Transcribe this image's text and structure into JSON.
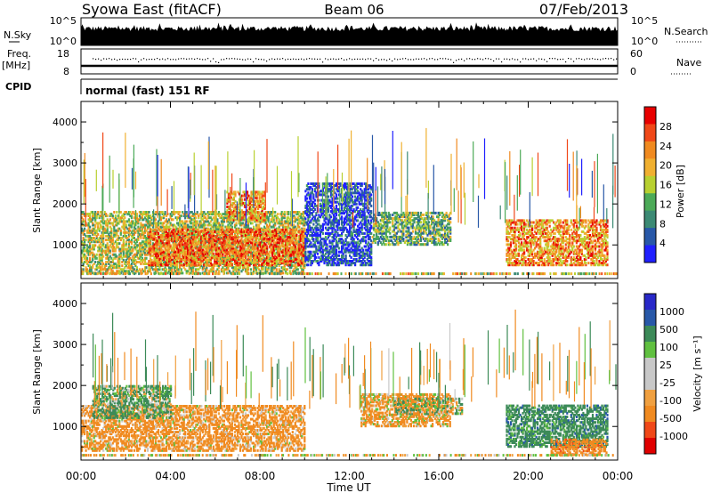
{
  "header": {
    "station": "Syowa East (fitACF)",
    "beam": "Beam 06",
    "date": "07/Feb/2013"
  },
  "top_panels": {
    "nsky_label": "N.Sky",
    "nsky_ticks": [
      "10^5",
      "10^0"
    ],
    "nsearch_label": "N.Search",
    "nsearch_ticks": [
      "10^5",
      "10^0"
    ],
    "freq_label": "Freq.",
    "freq_unit": "[MHz]",
    "freq_ticks": [
      "18",
      "8"
    ],
    "nave_label": "Nave",
    "nave_ticks": [
      "60",
      "0"
    ],
    "cpid_label": "CPID",
    "cpid_value": "normal (fast) 151 RF"
  },
  "x_axis": {
    "label": "Time UT",
    "ticks": [
      "00:00",
      "04:00",
      "08:00",
      "12:00",
      "16:00",
      "20:00",
      "00:00"
    ]
  },
  "colors": {
    "power_scale": [
      "#2020ff",
      "#2858a8",
      "#3c8a74",
      "#4caa58",
      "#b8d030",
      "#f0b030",
      "#f08a20",
      "#f04818",
      "#e80000"
    ],
    "velocity_scale": [
      "#e00000",
      "#f04818",
      "#f08a20",
      "#f0a040",
      "#c8c8c8",
      "#c8c8c8",
      "#60c040",
      "#3c8a58",
      "#2858a8",
      "#2828c8"
    ]
  },
  "chart_data": [
    {
      "type": "heatmap",
      "name": "power-panel",
      "ylabel": "Slant Range [km]",
      "xlabel": "Time UT",
      "x_range_hours": [
        0,
        24
      ],
      "ylim": [
        180,
        4500
      ],
      "yticks": [
        "1000",
        "2000",
        "3000",
        "4000"
      ],
      "colorbar_label": "Power [dB]",
      "colorbar_ticks": [
        "4",
        "8",
        "12",
        "16",
        "20",
        "24",
        "28"
      ],
      "regions": [
        {
          "t0": 0.0,
          "t1": 10.0,
          "r0": 300,
          "r1": 1800,
          "value": 18
        },
        {
          "t0": 3.0,
          "t1": 10.0,
          "r0": 500,
          "r1": 1400,
          "value": 26
        },
        {
          "t0": 6.5,
          "t1": 8.2,
          "r0": 1600,
          "r1": 2300,
          "value": 24
        },
        {
          "t0": 13.0,
          "t1": 16.5,
          "r0": 1000,
          "r1": 1800,
          "value": 14
        },
        {
          "t0": 19.0,
          "t1": 23.5,
          "r0": 500,
          "r1": 1600,
          "value": 24
        },
        {
          "t0": 10.0,
          "t1": 13.0,
          "r0": 500,
          "r1": 2500,
          "value": 6
        }
      ]
    },
    {
      "type": "heatmap",
      "name": "velocity-panel",
      "ylabel": "Slant Range [km]",
      "xlabel": "Time UT",
      "x_range_hours": [
        0,
        24
      ],
      "ylim": [
        180,
        4500
      ],
      "yticks": [
        "1000",
        "2000",
        "3000",
        "4000"
      ],
      "colorbar_label": "Velocity [m s⁻¹]",
      "colorbar_ticks": [
        "1000",
        "500",
        "100",
        "25",
        "-25",
        "-100",
        "-500",
        "-1000"
      ],
      "regions": [
        {
          "t0": 0.0,
          "t1": 10.0,
          "r0": 400,
          "r1": 1500,
          "value": -200
        },
        {
          "t0": 0.5,
          "t1": 4.0,
          "r0": 1200,
          "r1": 2000,
          "value": 150
        },
        {
          "t0": 12.5,
          "t1": 16.5,
          "r0": 1000,
          "r1": 1800,
          "value": -150
        },
        {
          "t0": 14.0,
          "t1": 17.0,
          "r0": 1300,
          "r1": 1700,
          "value": 0
        },
        {
          "t0": 19.0,
          "t1": 23.5,
          "r0": 500,
          "r1": 1500,
          "value": 300
        },
        {
          "t0": 21.0,
          "t1": 23.5,
          "r0": 300,
          "r1": 700,
          "value": -300
        }
      ]
    }
  ]
}
